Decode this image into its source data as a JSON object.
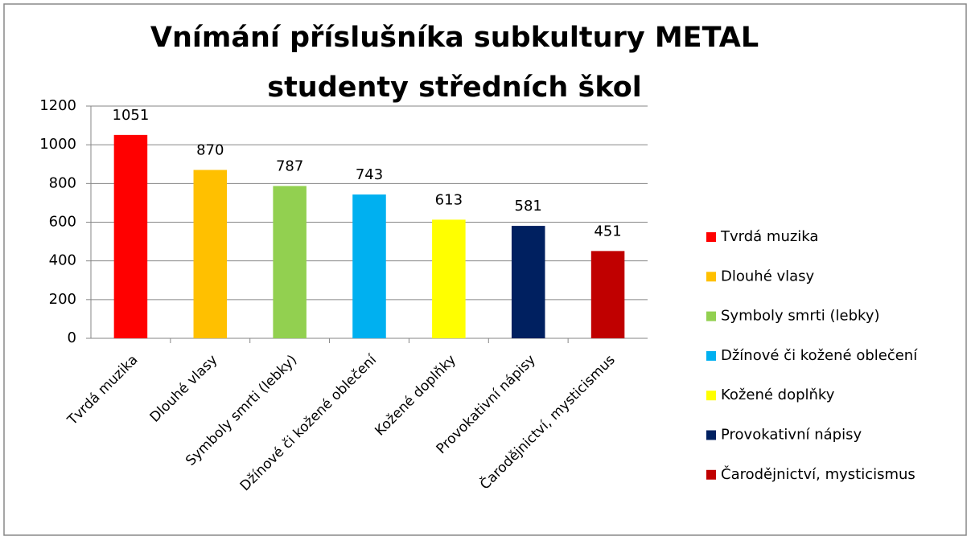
{
  "chart_data": {
    "type": "bar",
    "title": [
      "Vnímání příslušníka  subkultury  METAL",
      "studenty středních škol"
    ],
    "categories": [
      "Tvrdá muzika",
      "Dlouhé vlasy",
      "Symboly smrti (lebky)",
      "Džínové či kožené oblečení",
      "Kožené doplňky",
      "Provokativní nápisy",
      "Čarodějnictví, mysticismus"
    ],
    "values": [
      1051,
      870,
      787,
      743,
      613,
      581,
      451
    ],
    "colors": [
      "#ff0000",
      "#ffc000",
      "#92d050",
      "#00b0f0",
      "#ffff00",
      "#002060",
      "#c00000"
    ],
    "ylim": [
      0,
      1200
    ],
    "yticks": [
      0,
      200,
      400,
      600,
      800,
      1000,
      1200
    ],
    "grid": true,
    "legend": "right"
  }
}
